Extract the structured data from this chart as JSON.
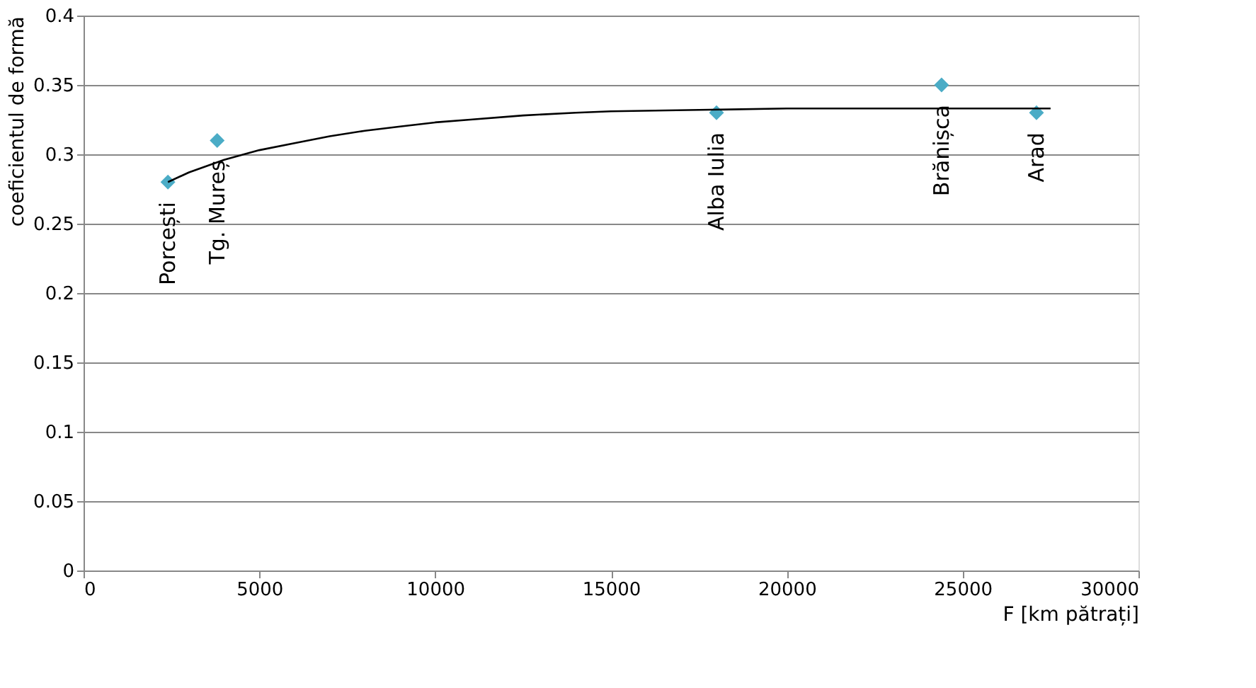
{
  "chart_data": {
    "type": "scatter",
    "xlabel": "F [km pătrați]",
    "ylabel": "coeficientul de formă",
    "xlim": [
      0,
      30000
    ],
    "xticks": [
      0,
      5000,
      10000,
      15000,
      20000,
      25000,
      30000
    ],
    "ylim": [
      0,
      0.4
    ],
    "yticks": [
      0,
      0.05,
      0.1,
      0.15,
      0.2,
      0.25,
      0.3,
      0.35,
      0.4
    ],
    "grid": "y",
    "marker": "diamond",
    "series": [
      {
        "color": "#4bacc6",
        "x": [
          2400,
          3800,
          18000,
          24400,
          27100
        ],
        "values": [
          0.28,
          0.31,
          0.33,
          0.35,
          0.33
        ]
      },
      {
        "type": "line",
        "color": "#000000",
        "marker": "none",
        "x": [
          2400,
          3000,
          4000,
          5000,
          6000,
          7000,
          8000,
          9000,
          10000,
          11000,
          12500,
          14000,
          15000,
          17500,
          20000,
          22500,
          25000,
          27500
        ],
        "values": [
          0.28,
          0.287,
          0.296,
          0.303,
          0.308,
          0.313,
          0.317,
          0.32,
          0.323,
          0.325,
          0.328,
          0.33,
          0.331,
          0.332,
          0.333,
          0.333,
          0.333,
          0.333
        ]
      }
    ],
    "annotations": [
      {
        "text": "Porcești",
        "x": 2400,
        "y": 0.28
      },
      {
        "text": "Tg. Mureș",
        "x": 3800,
        "y": 0.31
      },
      {
        "text": "Alba Iulia",
        "x": 18000,
        "y": 0.33
      },
      {
        "text": "Brănișca",
        "x": 24400,
        "y": 0.35
      },
      {
        "text": "Arad",
        "x": 27100,
        "y": 0.33
      }
    ]
  }
}
